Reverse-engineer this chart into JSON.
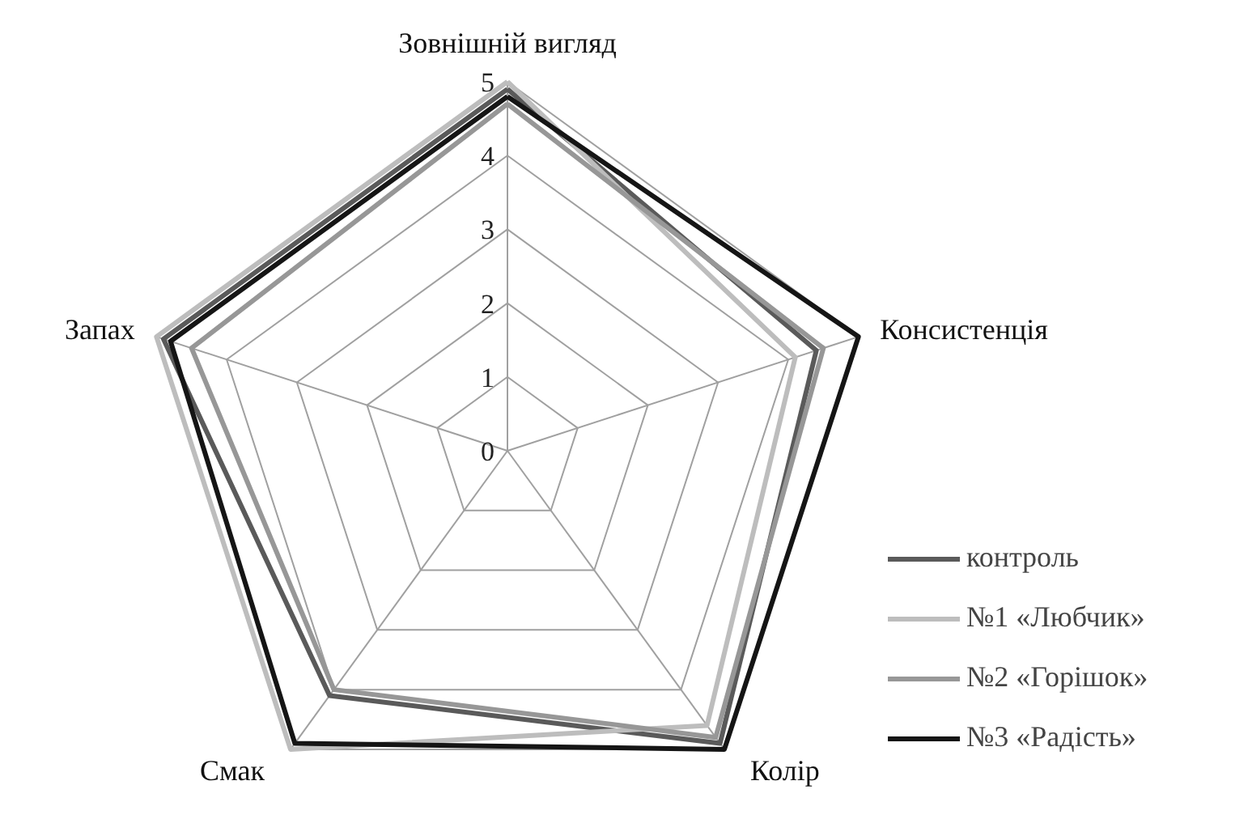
{
  "chart_data": {
    "type": "radar",
    "categories": [
      "Зовнішній вигляд",
      "Консистенція",
      "Колір",
      "Смак",
      "Запах"
    ],
    "series": [
      {
        "name": "контроль",
        "color": "#5a5a5a",
        "values": [
          4.9,
          4.4,
          4.9,
          4.1,
          4.9
        ]
      },
      {
        "name": "№1 «Любчик»",
        "color": "#bdbdbd",
        "values": [
          5.0,
          4.1,
          4.6,
          5.0,
          5.0
        ]
      },
      {
        "name": "№2 «Горішок»",
        "color": "#979797",
        "values": [
          4.7,
          4.5,
          4.8,
          4.0,
          4.5
        ]
      },
      {
        "name": "№3 «Радість»",
        "color": "#151515",
        "values": [
          4.8,
          5.0,
          5.0,
          4.9,
          4.8
        ]
      }
    ],
    "ylim": [
      0,
      5
    ],
    "yticks": [
      0,
      1,
      2,
      3,
      4,
      5
    ],
    "grid": true,
    "legend": "right"
  }
}
